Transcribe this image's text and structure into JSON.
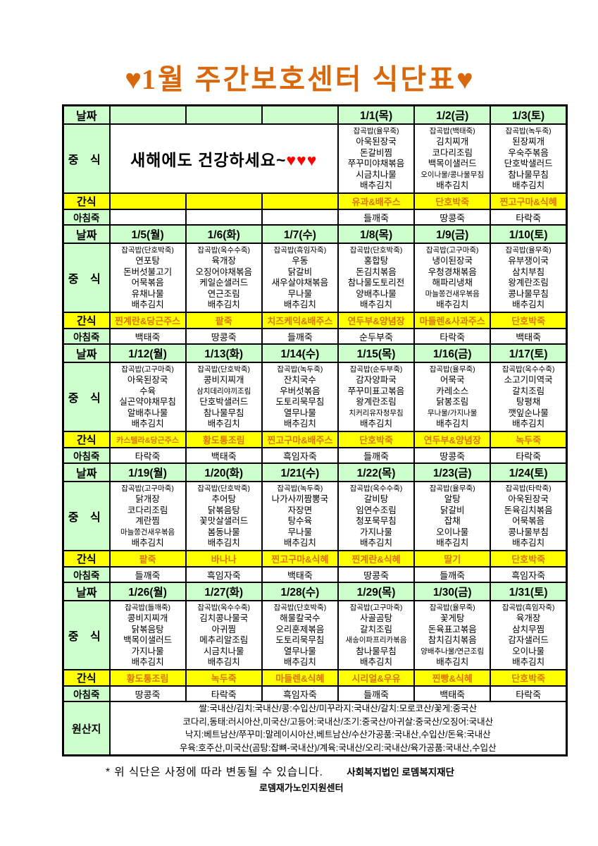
{
  "title": {
    "heart": "♥",
    "text": "1월 주간보호센터 식단표"
  },
  "row_labels": {
    "date": "날짜",
    "lunch": "중 식",
    "snack": "간식",
    "breakfast": "아침죽",
    "origin": "원산지"
  },
  "colors": {
    "title_orange": "#d9680c",
    "snack_text_orange": "#dd7400",
    "cell_green": "#ccffcc",
    "snack_yellow": "#ffff00",
    "heart_red": "#ff0000",
    "border_black": "#000000"
  },
  "weeks": [
    {
      "dates": [
        "",
        "",
        "",
        "1/1(목)",
        "1/2(금)",
        "1/3(토)"
      ],
      "message": "새해에도 건강하세요~",
      "message_hearts": "♥♥♥",
      "lunch": [
        null,
        null,
        null,
        [
          "잡곡밥(율무죽)",
          "아욱된장국",
          "돈갈비찜",
          "쭈꾸미야채볶음",
          "시금치나물",
          "배추김치"
        ],
        [
          "잡곡밥(백태죽)",
          "김치찌개",
          "코다리조림",
          "백목이샐러드",
          "오이나물/콩나물무침",
          "배추김치"
        ],
        [
          "잡곡밥(녹두죽)",
          "된장찌개",
          "우숙주볶음",
          "단호박샐러드",
          "참나물무침",
          "배추김치"
        ]
      ],
      "snack": [
        "",
        "",
        "",
        "유과&배주스",
        "단호박죽",
        "찐고구마&식혜"
      ],
      "breakfast": [
        "",
        "",
        "",
        "들깨죽",
        "땅콩죽",
        "타락죽"
      ]
    },
    {
      "dates": [
        "1/5(월)",
        "1/6(화)",
        "1/7(수)",
        "1/8(목)",
        "1/9(금)",
        "1/10(토)"
      ],
      "lunch": [
        [
          "잡곡밥(단호박죽)",
          "연포탕",
          "돈버섯불고기",
          "어묵볶음",
          "유채나물",
          "배추김치"
        ],
        [
          "잡곡밥(옥수수죽)",
          "육개장",
          "오징어야채볶음",
          "케일순샐러드",
          "연근조림",
          "배추김치"
        ],
        [
          "잡곡밥(흑임자죽)",
          "우동",
          "닭갈비",
          "새우살야채볶음",
          "무나물",
          "배추김치"
        ],
        [
          "잡곡밥(단호박죽)",
          "홍합탕",
          "돈김치볶음",
          "참나물도토리전",
          "양배추나물",
          "배추김치"
        ],
        [
          "잡곡밥(고구마죽)",
          "냉이된장국",
          "우청경채볶음",
          "해파리냉채",
          "마늘쫑건새우볶음",
          "배추김치"
        ],
        [
          "잡곡밥(율무죽)",
          "유부쟁이국",
          "삼치부침",
          "왕계란조림",
          "콩나물무침",
          "배추김치"
        ]
      ],
      "snack": [
        "찐계란&당근주스",
        "팥죽",
        "치즈케익&배주스",
        "연두부&양념장",
        "마들렌&사과주스",
        "단호박죽"
      ],
      "breakfast": [
        "백태죽",
        "땅콩죽",
        "들깨죽",
        "순두부죽",
        "타락죽",
        "백태죽"
      ]
    },
    {
      "dates": [
        "1/12(월)",
        "1/13(화)",
        "1/14(수)",
        "1/15(목)",
        "1/16(금)",
        "1/17(토)"
      ],
      "lunch": [
        [
          "잡곡밥(고구마죽)",
          "아욱된장국",
          "수육",
          "실곤약야채무침",
          "알배추나물",
          "배추김치"
        ],
        [
          "잡곡밥(단호박죽)",
          "콩비지찌개",
          "삼치데리야끼조림",
          "단호박샐러드",
          "참나물무침",
          "배추김치"
        ],
        [
          "잡곡밥(녹두죽)",
          "잔치국수",
          "우버섯볶음",
          "도토리묵무침",
          "열무나물",
          "배추김치"
        ],
        [
          "잡곡밥(순두부죽)",
          "감자양파국",
          "쭈꾸미표고볶음",
          "왕계란조림",
          "치커리유자청무침",
          "배추김치"
        ],
        [
          "잡곡밥(율무죽)",
          "어묵국",
          "카레소스",
          "닭봉조림",
          "무나물/가지나물",
          "배추김치"
        ],
        [
          "잡곡밥(옥수수죽)",
          "소고기미역국",
          "갈치조림",
          "탕평채",
          "깻잎순나물",
          "배추김치"
        ]
      ],
      "snack": [
        "카스텔라&당근주스",
        "황도통조림",
        "찐고구마&배주스",
        "단호박죽",
        "연두부&양념장",
        "녹두죽"
      ],
      "breakfast": [
        "타락죽",
        "백태죽",
        "흑임자죽",
        "들깨죽",
        "땅콩죽",
        "타락죽"
      ]
    },
    {
      "dates": [
        "1/19(월)",
        "1/20(화)",
        "1/21(수)",
        "1/22(목)",
        "1/23(금)",
        "1/24(토)"
      ],
      "lunch": [
        [
          "잡곡밥(고구마죽)",
          "닭개장",
          "코다리조림",
          "계란찜",
          "마늘쫑건새우볶음",
          "배추김치"
        ],
        [
          "잡곡밥(단호박죽)",
          "추어탕",
          "닭볶음탕",
          "꽃맛살샐러드",
          "봄동나물",
          "배추김치"
        ],
        [
          "잡곡밥(녹두죽)",
          "나가사끼짬뽕국",
          "자장면",
          "탕수육",
          "무나물",
          "배추김치"
        ],
        [
          "잡곡밥(옥수수죽)",
          "갈비탕",
          "임연수조림",
          "청포묵무침",
          "가지나물",
          "배추김치"
        ],
        [
          "잡곡밥(율무죽)",
          "알탕",
          "닭갈비",
          "잡채",
          "오이나물",
          "배추김치"
        ],
        [
          "잡곡밥(타락죽)",
          "아욱된장국",
          "돈육김치볶음",
          "어묵볶음",
          "콩나물부침",
          "배추김치"
        ]
      ],
      "snack": [
        "팥죽",
        "바나나",
        "찐고구마&식혜",
        "찐계란&식혜",
        "딸기",
        "단호박죽"
      ],
      "breakfast": [
        "들깨죽",
        "흑임자죽",
        "백태죽",
        "땅콩죽",
        "들깨죽",
        "흑임자죽"
      ]
    },
    {
      "dates": [
        "1/26(월)",
        "1/27(화)",
        "1/28(수)",
        "1/29(목)",
        "1/30(금)",
        "1/31(토)"
      ],
      "lunch": [
        [
          "잡곡밥(들깨죽)",
          "콩비지찌개",
          "닭볶음탕",
          "백목이샐러드",
          "가지나물",
          "배추김치"
        ],
        [
          "잡곡밥(옥수수죽)",
          "김치콩나물국",
          "아귀찜",
          "메추리알조림",
          "시금치나물",
          "배추김치"
        ],
        [
          "잡곡밥(단호박죽)",
          "해물칼국수",
          "오리훈제볶음",
          "도토리묵무침",
          "열무나물",
          "배추김치"
        ],
        [
          "잡곡밥(고구마죽)",
          "사골곰탕",
          "갈치조림",
          "새송이파프리카볶음",
          "참나물무침",
          "배추김치"
        ],
        [
          "잡곡밥(율무죽)",
          "꽃게탕",
          "돈육표고볶음",
          "참치김치볶음",
          "양배추나물/연근조림",
          "배추김치"
        ],
        [
          "잡곡밥(흑임자죽)",
          "육개장",
          "삼치무찜",
          "감자샐러드",
          "오이나물",
          "배추김치"
        ]
      ],
      "snack": [
        "황도통조림",
        "녹두죽",
        "마들렌&식혜",
        "시리얼&우유",
        "찐빵&식혜",
        "단호박죽"
      ],
      "breakfast": [
        "땅콩죽",
        "타락죽",
        "흑임자죽",
        "들깨죽",
        "백태죽",
        "타락죽"
      ]
    }
  ],
  "origin": {
    "lines": [
      "쌀:국내산/김치:국내산/콩:수입산/미꾸라지:국내산/갈치:모로코산/꽃게:중국산",
      "코다리,동태:러시아산,미국산/고등어:국내산/조기:중국산/아귀살:중국산/오징어:국내산",
      "낙지:베트남산/쭈꾸미:말레이시아산,베트남산/수산가공품:국내산,수입산/돈육:국내산",
      "우육:호주산,미국산(곰탕:잡뼈-국내산)/계육:국내산/오리:국내산/육가공품:국내산,수입산"
    ]
  },
  "footer": {
    "note": "* 위 식단은 사정에 따라 변동될 수 있습니다.",
    "org1": "사회복지법인 로뎀복지재단",
    "org2": "로뎀재가노인지원센터"
  }
}
